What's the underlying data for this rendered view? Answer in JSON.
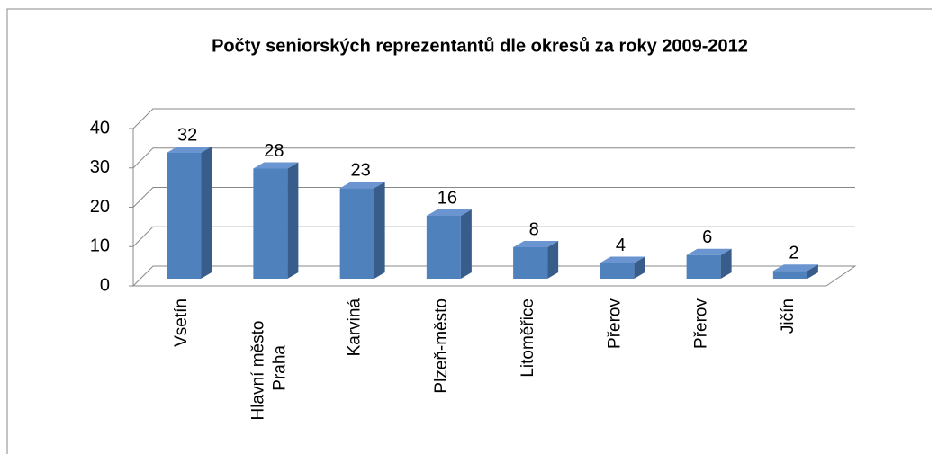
{
  "chart_data": {
    "type": "bar3d",
    "title": "Počty seniorských reprezentantů dle okresů za roky 2009-2012",
    "categories": [
      "Vsetín",
      "Hlavní město Praha",
      "Karviná",
      "Plzeň-město",
      "Litoměřice",
      "Přerov",
      "Přerov",
      "Jičín"
    ],
    "values": [
      32,
      28,
      23,
      16,
      8,
      4,
      6,
      2
    ],
    "color": "#4f81bd",
    "ylim": [
      0,
      40
    ],
    "yticks": [
      0,
      10,
      20,
      30,
      40
    ],
    "grid": true
  }
}
